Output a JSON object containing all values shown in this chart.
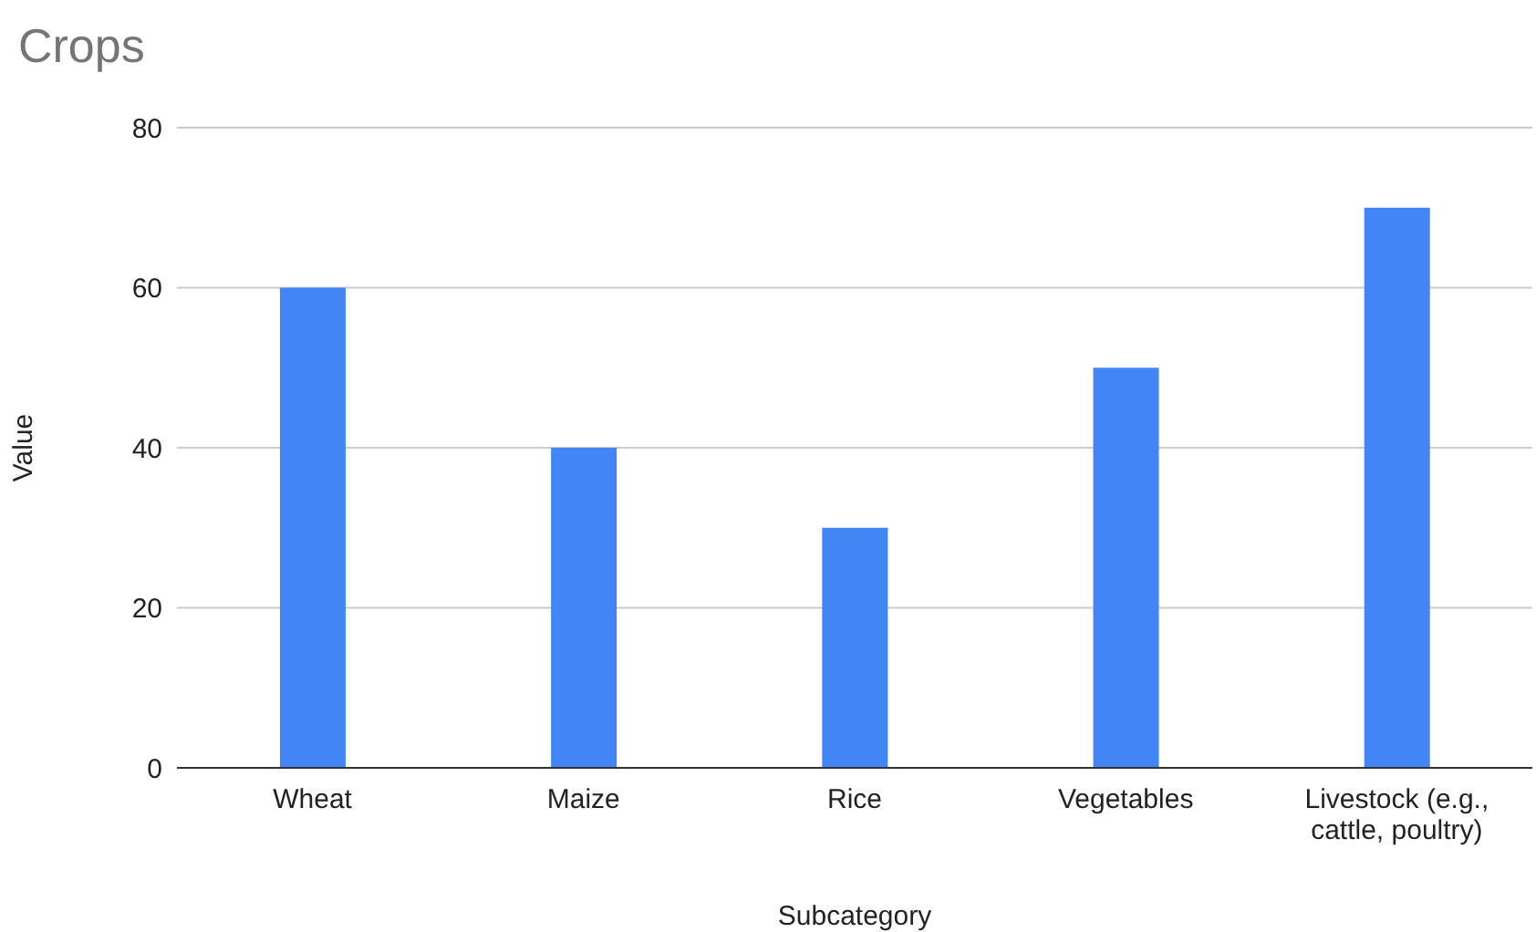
{
  "chart_data": {
    "type": "bar",
    "title": "Crops",
    "xlabel": "Subcategory",
    "ylabel": "Value",
    "categories": [
      "Wheat",
      "Maize",
      "Rice",
      "Vegetables",
      "Livestock (e.g., cattle, poultry)"
    ],
    "values": [
      60,
      40,
      30,
      50,
      70
    ],
    "color": "#4285f4",
    "ylim": [
      0,
      80
    ],
    "yticks": [
      0,
      20,
      40,
      60,
      80
    ],
    "grid": "y",
    "legend": false
  }
}
